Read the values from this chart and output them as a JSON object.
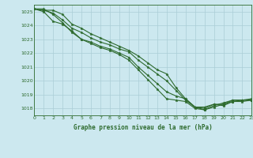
{
  "title": "Graphe pression niveau de la mer (hPa)",
  "bg_color": "#cce8ef",
  "grid_color": "#aacdd6",
  "line_color": "#2d6a2d",
  "label_color": "#2d6a2d",
  "xlim": [
    0,
    23
  ],
  "ylim": [
    1017.5,
    1025.5
  ],
  "yticks": [
    1018,
    1019,
    1020,
    1021,
    1022,
    1023,
    1024,
    1025
  ],
  "xticks": [
    0,
    1,
    2,
    3,
    4,
    5,
    6,
    7,
    8,
    9,
    10,
    11,
    12,
    13,
    14,
    15,
    16,
    17,
    18,
    19,
    20,
    21,
    22,
    23
  ],
  "lines": [
    [
      1025.2,
      1025.1,
      1025.1,
      1024.8,
      1024.1,
      1023.8,
      1023.4,
      1023.1,
      1022.8,
      1022.5,
      1022.2,
      1021.8,
      1021.3,
      1020.8,
      1020.5,
      1019.5,
      1018.7,
      1018.1,
      1018.1,
      1018.3,
      1018.2,
      1018.5,
      1018.5,
      1018.6
    ],
    [
      1025.2,
      1025.1,
      1024.9,
      1024.4,
      1023.8,
      1023.5,
      1023.1,
      1022.8,
      1022.6,
      1022.3,
      1022.1,
      1021.5,
      1021.0,
      1020.5,
      1020.0,
      1019.3,
      1018.6,
      1018.1,
      1018.0,
      1018.3,
      1018.3,
      1018.6,
      1018.6,
      1018.7
    ],
    [
      1025.2,
      1025.0,
      1024.3,
      1024.1,
      1023.6,
      1023.0,
      1022.8,
      1022.5,
      1022.3,
      1022.0,
      1021.7,
      1021.0,
      1020.4,
      1019.8,
      1019.2,
      1018.9,
      1018.7,
      1018.1,
      1017.9,
      1018.1,
      1018.3,
      1018.5,
      1018.6,
      1018.6
    ],
    [
      1025.2,
      1025.2,
      1024.8,
      1024.2,
      1023.5,
      1023.0,
      1022.7,
      1022.4,
      1022.2,
      1021.9,
      1021.5,
      1020.8,
      1020.1,
      1019.4,
      1018.7,
      1018.6,
      1018.5,
      1018.0,
      1017.9,
      1018.2,
      1018.4,
      1018.6,
      1018.6,
      1018.6
    ]
  ]
}
